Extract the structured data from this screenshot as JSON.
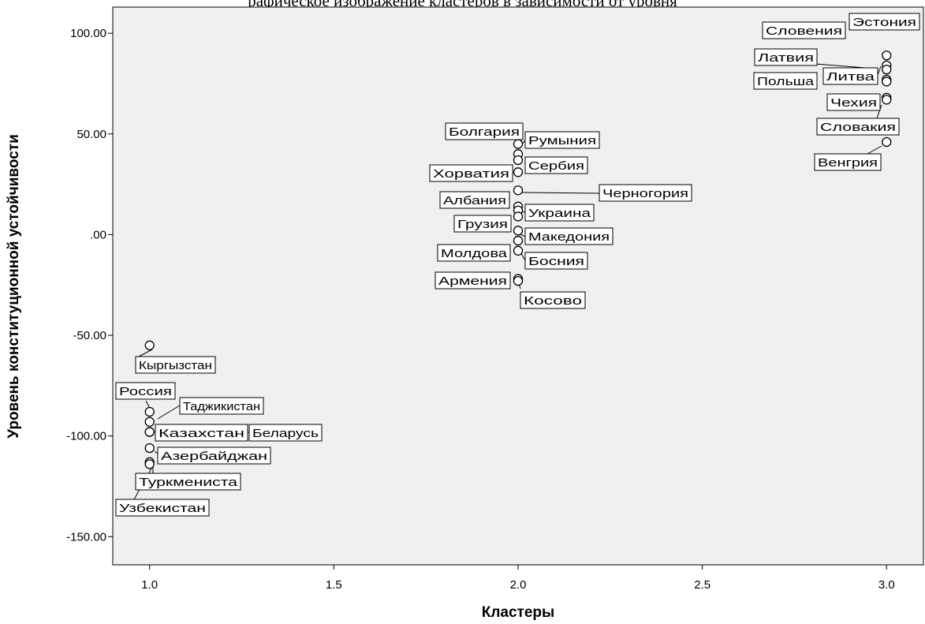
{
  "header": {
    "title_fragment": "рафическое изображение кластеров в зависимости от уровня"
  },
  "chart_data": {
    "type": "scatter",
    "title": "",
    "xlabel": "Кластеры",
    "ylabel": "Уровень конституционной устойчивости",
    "xlim": [
      0.9,
      3.1
    ],
    "ylim": [
      -164,
      113
    ],
    "x_ticks": [
      {
        "value": 1.0,
        "label": "1.0"
      },
      {
        "value": 1.5,
        "label": "1.5"
      },
      {
        "value": 2.0,
        "label": "2.0"
      },
      {
        "value": 2.5,
        "label": "2.5"
      },
      {
        "value": 3.0,
        "label": "3.0"
      }
    ],
    "y_ticks": [
      {
        "value": 100,
        "label": "100.00"
      },
      {
        "value": 50,
        "label": "50.00"
      },
      {
        "value": 0,
        "label": ".00"
      },
      {
        "value": -50,
        "label": "-50.00"
      },
      {
        "value": -100,
        "label": "-100.00"
      },
      {
        "value": -150,
        "label": "-150.00"
      }
    ],
    "grid": false,
    "background": "#f0f0f0",
    "marker_color": "#000000",
    "points": [
      {
        "label": "Эстония",
        "x": 3,
        "y": 89
      },
      {
        "label": "Словения",
        "x": 3,
        "y": 84
      },
      {
        "label": "Латвия",
        "x": 3,
        "y": 82
      },
      {
        "label": "Литва",
        "x": 3,
        "y": 77
      },
      {
        "label": "Польша",
        "x": 3,
        "y": 76
      },
      {
        "label": "Чехия",
        "x": 3,
        "y": 68
      },
      {
        "label": "Словакия",
        "x": 3,
        "y": 67
      },
      {
        "label": "Венгрия",
        "x": 3,
        "y": 46
      },
      {
        "label": "Болгария",
        "x": 2,
        "y": 45
      },
      {
        "label": "Румыния",
        "x": 2,
        "y": 40
      },
      {
        "label": "Сербия",
        "x": 2,
        "y": 37
      },
      {
        "label": "Хорватия",
        "x": 2,
        "y": 31
      },
      {
        "label": "Черногория",
        "x": 2,
        "y": 22
      },
      {
        "label": "Албания",
        "x": 2,
        "y": 14
      },
      {
        "label": "Украина",
        "x": 2,
        "y": 12
      },
      {
        "label": "Грузия",
        "x": 2,
        "y": 9
      },
      {
        "label": "Македония",
        "x": 2,
        "y": 2
      },
      {
        "label": "Молдова",
        "x": 2,
        "y": -3
      },
      {
        "label": "Босния",
        "x": 2,
        "y": -8
      },
      {
        "label": "Армения",
        "x": 2,
        "y": -22
      },
      {
        "label": "Косово",
        "x": 2,
        "y": -23
      },
      {
        "label": "Кыргызстан",
        "x": 1,
        "y": -55
      },
      {
        "label": "Россия",
        "x": 1,
        "y": -88
      },
      {
        "label": "Таджикистан",
        "x": 1,
        "y": -93
      },
      {
        "label": "Казахстан",
        "x": 1,
        "y": -98
      },
      {
        "label": "Беларусь",
        "x": 1,
        "y": -98
      },
      {
        "label": "Азербайджан",
        "x": 1,
        "y": -106
      },
      {
        "label": "Туркмениста",
        "x": 1,
        "y": -113
      },
      {
        "label": "Узбекистан",
        "x": 1,
        "y": -114
      }
    ]
  }
}
